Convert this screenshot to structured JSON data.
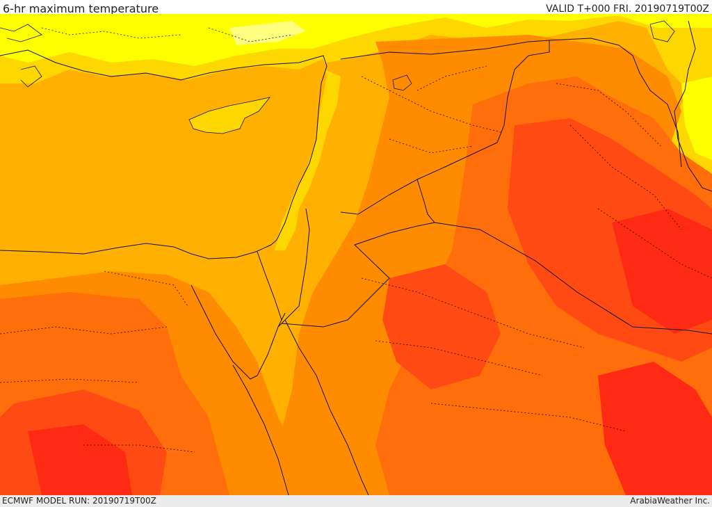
{
  "header": {
    "title": "6-hr maximum temperature",
    "valid": "VALID T+000 FRI. 20190719T00Z"
  },
  "footer": {
    "model_run": "ECMWF MODEL RUN: 20190719T00Z",
    "credit": "ArabiaWeather Inc."
  },
  "palette": {
    "pale_yellow": "#ffff80",
    "yellow": "#ffff00",
    "gold": "#ffd700",
    "amber": "#ffb000",
    "orange": "#ff8c00",
    "dark_orange": "#ff6e0a",
    "red_orange": "#ff4a14",
    "red": "#ff2a14",
    "border": "#111111"
  }
}
